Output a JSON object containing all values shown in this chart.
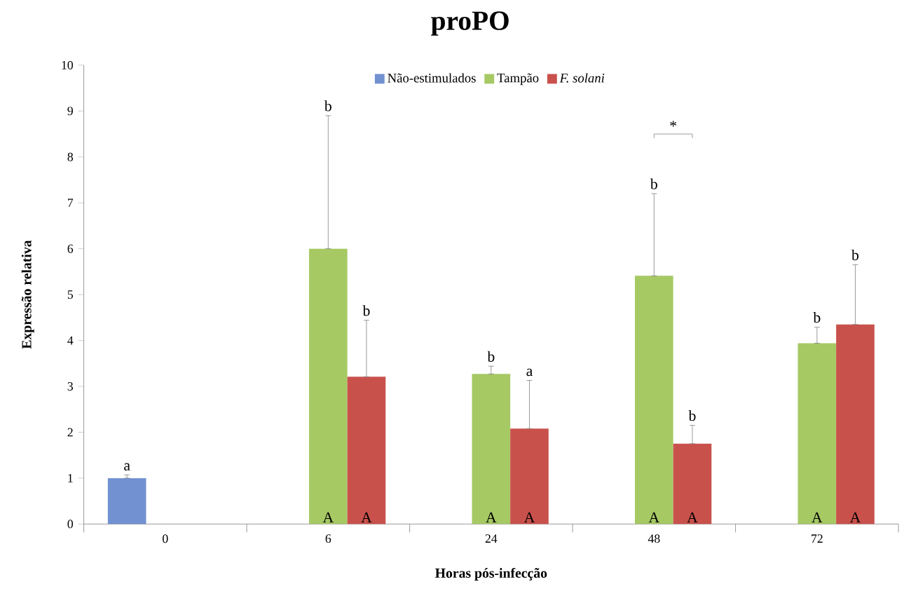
{
  "chart_data": {
    "type": "bar",
    "title": "proPO",
    "xlabel": "Horas pós-infecção",
    "ylabel": "Expressão relativa",
    "categories": [
      "0",
      "6",
      "24",
      "48",
      "72"
    ],
    "series": [
      {
        "name": "Não-estimulados",
        "color": "#7191d0",
        "values": [
          1.0,
          null,
          null,
          null,
          null
        ],
        "errors": [
          [
            1.0,
            1.07
          ],
          null,
          null,
          null,
          null
        ]
      },
      {
        "name": "Tampão",
        "color": "#a6c964",
        "values": [
          null,
          6.0,
          3.27,
          5.41,
          3.94
        ],
        "errors": [
          null,
          [
            6.0,
            8.9
          ],
          [
            3.27,
            3.44
          ],
          [
            5.41,
            7.2
          ],
          [
            3.94,
            4.29
          ]
        ]
      },
      {
        "name": "*F. solani*",
        "color": "#c9514c",
        "values": [
          null,
          3.21,
          2.08,
          1.75,
          4.35
        ],
        "errors": [
          null,
          [
            3.21,
            4.44
          ],
          [
            2.08,
            3.13
          ],
          [
            1.75,
            2.15
          ],
          [
            4.35,
            5.65
          ]
        ]
      }
    ],
    "ylim": [
      0,
      10
    ],
    "yticks": [
      0,
      1,
      2,
      3,
      4,
      5,
      6,
      7,
      8,
      9,
      10
    ],
    "legend": "top",
    "grid": false,
    "annotations": [
      "a",
      "b",
      "b",
      "b",
      "a",
      "b",
      "b",
      "b",
      "b",
      "A",
      "A",
      "A",
      "A",
      "A",
      "A",
      "A",
      "A",
      "*"
    ]
  }
}
